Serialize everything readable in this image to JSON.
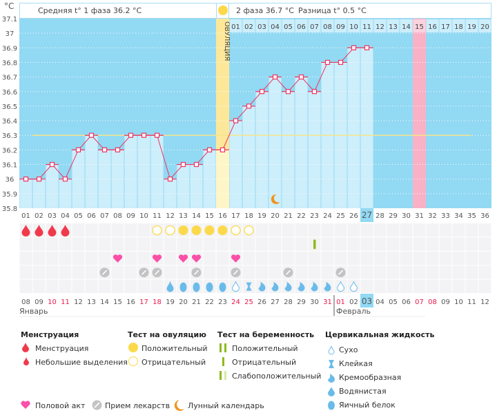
{
  "unit": "°C",
  "header": {
    "phase1": "Средняя t° 1 фаза 36.2 °C",
    "phase2": "2 фаза 36.7 °C",
    "diff": "Разница t° 0.5 °C"
  },
  "ovulation_label": "ОВУЛЯЦИЯ",
  "colors": {
    "bg": "#92d9f3",
    "bar": "#cdeefb",
    "ovulation": "#fde89a",
    "pink": "#f9b1c6",
    "line": "#f0325f",
    "avg": "#f7e58a",
    "highlight": "#92d9f3",
    "red": "#e8184a"
  },
  "chart_data": {
    "type": "line",
    "y_ticks": [
      "37.1",
      "37",
      "36.9",
      "36.8",
      "36.7",
      "36.6",
      "36.5",
      "36.4",
      "36.3",
      "36.2",
      "36.1",
      "36",
      "35.9",
      "35.8"
    ],
    "ylim": [
      35.8,
      37.1
    ],
    "cycle_days": [
      "01",
      "02",
      "03",
      "04",
      "05",
      "06",
      "07",
      "08",
      "09",
      "10",
      "11",
      "12",
      "13",
      "14",
      "15",
      "16",
      "17",
      "18",
      "19",
      "20",
      "21",
      "22",
      "23",
      "24",
      "25",
      "26",
      "27",
      "28",
      "29",
      "30",
      "31",
      "32",
      "33",
      "34",
      "35",
      "36"
    ],
    "temperatures": [
      36.0,
      36.0,
      36.1,
      36.0,
      36.2,
      36.3,
      36.2,
      36.2,
      36.3,
      36.3,
      36.3,
      36.0,
      36.1,
      36.1,
      36.2,
      36.2,
      36.4,
      36.5,
      36.6,
      36.7,
      36.6,
      36.7,
      36.6,
      36.8,
      36.8,
      36.9,
      36.9
    ],
    "coverline": 36.3,
    "ovulation_day": 16,
    "phase2_days": [
      "01",
      "02",
      "03",
      "04",
      "05",
      "06",
      "07",
      "08",
      "09",
      "10",
      "11",
      "12",
      "13",
      "14",
      "15",
      "16",
      "17",
      "18",
      "19",
      "20"
    ],
    "highlight_phase2_day": "15",
    "current_day": "27",
    "moon_day": 20
  },
  "rows": {
    "menstruation_ovtest": [
      "m",
      "m",
      "m",
      "m",
      "",
      "",
      "",
      "",
      "",
      "",
      "on",
      "on",
      "op",
      "op",
      "op",
      "op",
      "on",
      "on"
    ],
    "pregnancy": [
      "",
      "",
      "",
      "",
      "",
      "",
      "",
      "",
      "",
      "",
      "",
      "",
      "",
      "",
      "",
      "",
      "",
      "",
      "",
      "",
      "",
      "",
      "pn"
    ],
    "intercourse": [
      "",
      "",
      "",
      "",
      "",
      "",
      "",
      "h",
      "",
      "",
      "h",
      "",
      "h",
      "h",
      "",
      "",
      "h"
    ],
    "medication": [
      "",
      "",
      "",
      "",
      "",
      "",
      "p",
      "",
      "",
      "p",
      "p",
      "",
      "",
      "p",
      "",
      "",
      "p",
      "",
      "",
      "",
      "p",
      "",
      "",
      "",
      "p"
    ],
    "cervical": [
      "",
      "",
      "",
      "",
      "",
      "",
      "",
      "",
      "",
      "",
      "",
      "w",
      "e",
      "e",
      "e",
      "e",
      "d",
      "s",
      "c",
      "c",
      "c",
      "c",
      "c",
      "c",
      "d",
      "d"
    ]
  },
  "dates": [
    "08",
    "09",
    "10",
    "11",
    "12",
    "13",
    "14",
    "15",
    "16",
    "17",
    "18",
    "19",
    "20",
    "21",
    "22",
    "23",
    "24",
    "25",
    "26",
    "27",
    "28",
    "29",
    "30",
    "31",
    "01",
    "02",
    "03",
    "04",
    "05",
    "06",
    "07",
    "08",
    "09",
    "10",
    "11",
    "12"
  ],
  "red_dates": [
    2,
    3,
    9,
    10,
    16,
    17,
    23,
    24,
    30,
    31
  ],
  "today_index": 26,
  "months": {
    "jan": "Январь",
    "feb": "Февраль"
  },
  "legend": {
    "menstruation": {
      "title": "Менструация",
      "items": [
        "Менструация",
        "Небольшие выделения"
      ]
    },
    "ovulation_test": {
      "title": "Тест на овуляцию",
      "items": [
        "Положительный",
        "Отрицательный"
      ]
    },
    "pregnancy_test": {
      "title": "Тест на беременность",
      "items": [
        "Положительный",
        "Отрицательный",
        "Слабоположительный"
      ]
    },
    "cervical": {
      "title": "Цервикальная жидкость",
      "items": [
        "Сухо",
        "Клейкая",
        "Кремообразная",
        "Водянистая",
        "Яичный белок"
      ]
    },
    "other": [
      "Половой акт",
      "Прием лекарств",
      "Лунный календарь"
    ]
  }
}
